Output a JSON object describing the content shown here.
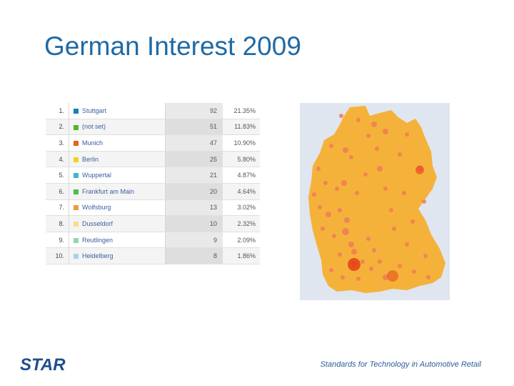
{
  "slide": {
    "title": "German Interest 2009",
    "footer": "Standards for Technology in Automotive Retail"
  },
  "logo": {
    "text": "STAR",
    "color": "#1f4f8f"
  },
  "table": {
    "rows": [
      {
        "rank": "1.",
        "city": "Stuttgart",
        "visits": "92",
        "percent": "21.35%",
        "color": "#1a7fb8"
      },
      {
        "rank": "2.",
        "city": "(not set)",
        "visits": "51",
        "percent": "11.83%",
        "color": "#55b52e"
      },
      {
        "rank": "3.",
        "city": "Munich",
        "visits": "47",
        "percent": "10.90%",
        "color": "#e8631a"
      },
      {
        "rank": "4.",
        "city": "Berlin",
        "visits": "25",
        "percent": "5.80%",
        "color": "#f2d21a"
      },
      {
        "rank": "5.",
        "city": "Wuppertal",
        "visits": "21",
        "percent": "4.87%",
        "color": "#3fb6c9"
      },
      {
        "rank": "6.",
        "city": "Frankfurt am Main",
        "visits": "20",
        "percent": "4.64%",
        "color": "#4bbf4b"
      },
      {
        "rank": "7.",
        "city": "Wolfsburg",
        "visits": "13",
        "percent": "3.02%",
        "color": "#f29a3a"
      },
      {
        "rank": "8.",
        "city": "Dusseldorf",
        "visits": "10",
        "percent": "2.32%",
        "color": "#f5e08a"
      },
      {
        "rank": "9.",
        "city": "Reutlingen",
        "visits": "9",
        "percent": "2.09%",
        "color": "#8fd6b0"
      },
      {
        "rank": "10.",
        "city": "Heidelberg",
        "visits": "8",
        "percent": "1.86%",
        "color": "#a8d0ee"
      }
    ]
  },
  "map": {
    "country_fill": "#f5b23a",
    "dot_color": "#f07a5a",
    "hotspot_color": "#e8451a"
  }
}
